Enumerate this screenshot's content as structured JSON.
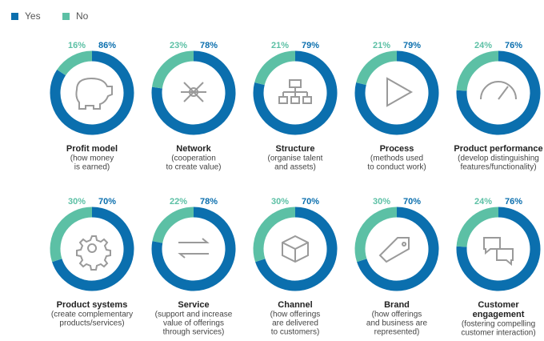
{
  "legend": {
    "items": [
      {
        "name": "Yes",
        "color": "#0b6fae"
      },
      {
        "name": "No",
        "color": "#5cc0a5"
      }
    ]
  },
  "chart_data": [
    {
      "type": "donut",
      "title": "Profit model",
      "subtitle": [
        "(how money",
        "is earned)"
      ],
      "values": [
        86,
        16
      ],
      "value_labels": [
        "86%",
        "16%"
      ]
    },
    {
      "type": "donut",
      "title": "Network",
      "subtitle": [
        "(cooperation",
        "to create value)"
      ],
      "values": [
        78,
        23
      ],
      "value_labels": [
        "78%",
        "23%"
      ]
    },
    {
      "type": "donut",
      "title": "Structure",
      "subtitle": [
        "(organise talent",
        "and assets)"
      ],
      "values": [
        79,
        21
      ],
      "value_labels": [
        "79%",
        "21%"
      ]
    },
    {
      "type": "donut",
      "title": "Process",
      "subtitle": [
        "(methods used",
        "to conduct work)"
      ],
      "values": [
        79,
        21
      ],
      "value_labels": [
        "79%",
        "21%"
      ]
    },
    {
      "type": "donut",
      "title": "Product performance",
      "subtitle": [
        "(develop distinguishing",
        "features/functionality)"
      ],
      "values": [
        76,
        24
      ],
      "value_labels": [
        "76%",
        "24%"
      ]
    },
    {
      "type": "donut",
      "title": "Product systems",
      "subtitle": [
        "(create complementary",
        "products/services)"
      ],
      "values": [
        70,
        30
      ],
      "value_labels": [
        "70%",
        "30%"
      ]
    },
    {
      "type": "donut",
      "title": "Service",
      "subtitle": [
        "(support and increase",
        "value of offerings",
        "through services)"
      ],
      "values": [
        78,
        22
      ],
      "value_labels": [
        "78%",
        "22%"
      ]
    },
    {
      "type": "donut",
      "title": "Channel",
      "subtitle": [
        "(how offerings",
        "are delivered",
        "to customers)"
      ],
      "values": [
        70,
        30
      ],
      "value_labels": [
        "70%",
        "30%"
      ]
    },
    {
      "type": "donut",
      "title": "Brand",
      "subtitle": [
        "(how offerings",
        "and business are",
        "represented)"
      ],
      "values": [
        70,
        30
      ],
      "value_labels": [
        "70%",
        "30%"
      ]
    },
    {
      "type": "donut",
      "title": [
        "Customer",
        "engagement"
      ],
      "subtitle": [
        "(fostering compelling",
        "customer interaction)"
      ],
      "values": [
        76,
        24
      ],
      "value_labels": [
        "76%",
        "24%"
      ]
    }
  ]
}
